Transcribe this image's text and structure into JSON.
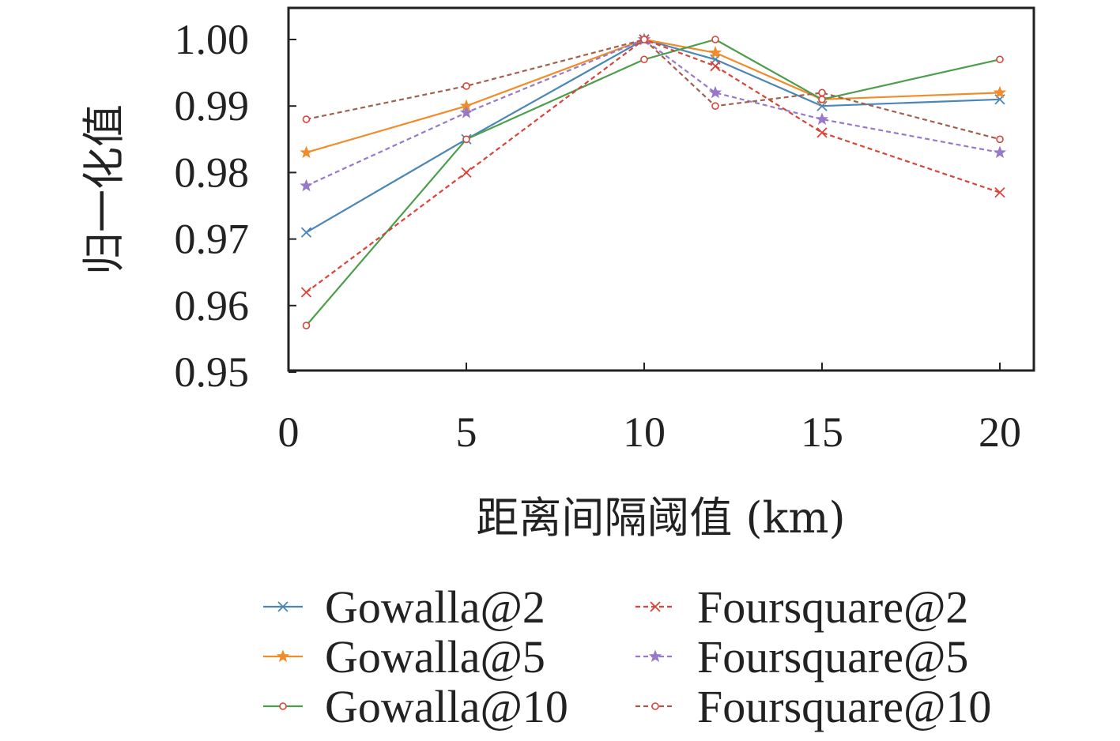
{
  "chart_data": {
    "type": "line",
    "xlabel": "距离间隔阈值 (km)",
    "ylabel": "归一化值",
    "xlim": [
      0,
      21
    ],
    "ylim": [
      0.95,
      1.005
    ],
    "x_ticks": [
      0,
      5,
      10,
      15,
      20
    ],
    "y_ticks": [
      0.95,
      0.96,
      0.97,
      0.98,
      0.99,
      1.0
    ],
    "y_tick_labels": [
      "0.95",
      "0.96",
      "0.97",
      "0.98",
      "0.99",
      "1.00"
    ],
    "x": [
      0.5,
      5,
      10,
      12,
      15,
      20
    ],
    "grid": false,
    "legend_position": "bottom",
    "series": [
      {
        "name": "Gowalla@2",
        "color": "#4a86b8",
        "dashed": false,
        "marker": "x",
        "values": [
          0.971,
          0.985,
          1.0,
          0.997,
          0.99,
          0.991
        ]
      },
      {
        "name": "Gowalla@5",
        "color": "#f08c2a",
        "dashed": false,
        "marker": "star",
        "values": [
          0.983,
          0.99,
          1.0,
          0.998,
          0.991,
          0.992
        ]
      },
      {
        "name": "Gowalla@10",
        "color": "#4c9e4c",
        "dashed": false,
        "marker": "circle",
        "values": [
          0.957,
          0.985,
          0.997,
          1.0,
          0.991,
          0.997
        ]
      },
      {
        "name": "Foursquare@2",
        "color": "#d9443a",
        "dashed": true,
        "marker": "x",
        "values": [
          0.962,
          0.98,
          1.0,
          0.996,
          0.986,
          0.977
        ]
      },
      {
        "name": "Foursquare@5",
        "color": "#9878c8",
        "dashed": true,
        "marker": "star",
        "values": [
          0.978,
          0.989,
          1.0,
          0.992,
          0.988,
          0.983
        ]
      },
      {
        "name": "Foursquare@10",
        "color": "#a06050",
        "dashed": true,
        "marker": "circle",
        "values": [
          0.988,
          0.993,
          1.0,
          0.99,
          0.992,
          0.985
        ]
      }
    ]
  }
}
